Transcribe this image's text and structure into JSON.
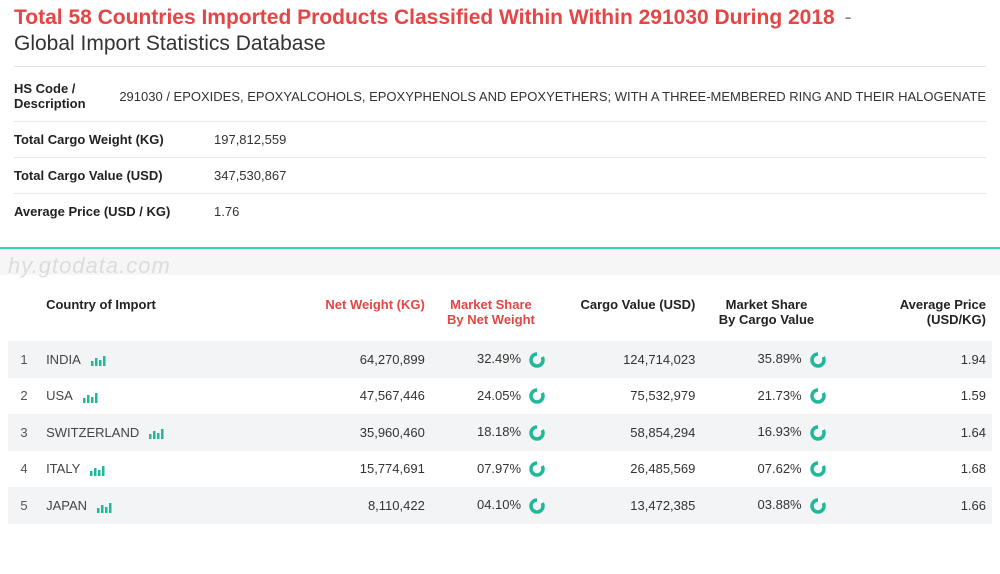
{
  "header": {
    "title_red": "Total 58 Countries Imported Products Classified Within Within 291030 During 2018",
    "dash": "-",
    "subtitle": "Global Import Statistics Database"
  },
  "summary": {
    "rows": [
      {
        "label": "HS Code / Description",
        "value": "291030 / EPOXIDES, EPOXYALCOHOLS, EPOXYPHENOLS AND EPOXYETHERS; WITH A THREE-MEMBERED RING AND THEIR HALOGENATE"
      },
      {
        "label": "Total Cargo Weight (KG)",
        "value": "197,812,559"
      },
      {
        "label": "Total Cargo Value (USD)",
        "value": "347,530,867"
      },
      {
        "label": "Average Price (USD / KG)",
        "value": "1.76"
      }
    ]
  },
  "watermark": "hy.gtodata.com",
  "table": {
    "columns": {
      "rank": "",
      "country": "Country of Import",
      "net_weight": "Net Weight (KG)",
      "ms_net_weight_l1": "Market Share",
      "ms_net_weight_l2": "By Net Weight",
      "cargo_value": "Cargo Value (USD)",
      "ms_cargo_value_l1": "Market Share",
      "ms_cargo_value_l2": "By Cargo Value",
      "avg_price": "Average Price (USD/KG)"
    },
    "rows": [
      {
        "rank": "1",
        "country": "INDIA",
        "net_weight": "64,270,899",
        "ms_nw": "32.49%",
        "cargo_value": "124,714,023",
        "ms_cv": "35.89%",
        "avg": "1.94"
      },
      {
        "rank": "2",
        "country": "USA",
        "net_weight": "47,567,446",
        "ms_nw": "24.05%",
        "cargo_value": "75,532,979",
        "ms_cv": "21.73%",
        "avg": "1.59"
      },
      {
        "rank": "3",
        "country": "SWITZERLAND",
        "net_weight": "35,960,460",
        "ms_nw": "18.18%",
        "cargo_value": "58,854,294",
        "ms_cv": "16.93%",
        "avg": "1.64"
      },
      {
        "rank": "4",
        "country": "ITALY",
        "net_weight": "15,774,691",
        "ms_nw": "07.97%",
        "cargo_value": "26,485,569",
        "ms_cv": "07.62%",
        "avg": "1.68"
      },
      {
        "rank": "5",
        "country": "JAPAN",
        "net_weight": "8,110,422",
        "ms_nw": "04.10%",
        "cargo_value": "13,472,385",
        "ms_cv": "03.88%",
        "avg": "1.66"
      }
    ]
  },
  "colors": {
    "accent_red": "#e64545",
    "accent_teal": "#2fd6b8",
    "icon_teal": "#1fb99a",
    "row_alt": "#f3f4f5",
    "border": "#eaeaea",
    "watermark": "#dcdcdc"
  }
}
